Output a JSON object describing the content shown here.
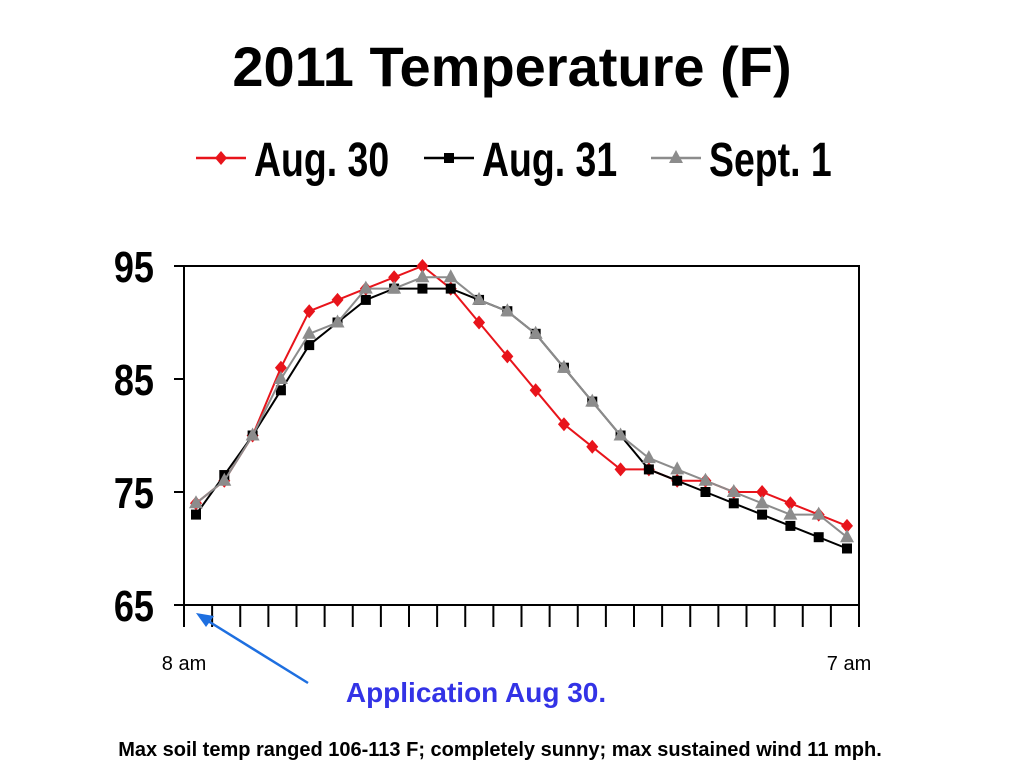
{
  "chart_data": {
    "type": "line",
    "title": "2011 Temperature (F)",
    "xlabel": "",
    "ylabel": "",
    "ylim": [
      65,
      95
    ],
    "yticks": [
      65,
      75,
      85,
      95
    ],
    "x_start_label": "8 am",
    "x_end_label": "7 am",
    "legend": "top",
    "grid": false,
    "series": [
      {
        "name": "Aug. 30",
        "color": "#e8141b",
        "marker": "diamond",
        "values": [
          74,
          76,
          80,
          86,
          91,
          92,
          93,
          94,
          95,
          93,
          90,
          87,
          84,
          81,
          79,
          77,
          77,
          76,
          76,
          75,
          75,
          74,
          73,
          72
        ]
      },
      {
        "name": "Aug. 31",
        "color": "#000000",
        "marker": "square",
        "values": [
          73,
          76.5,
          80,
          84,
          88,
          90,
          92,
          93,
          93,
          93,
          92,
          91,
          89,
          86,
          83,
          80,
          77,
          76,
          75,
          74,
          73,
          72,
          71,
          70
        ]
      },
      {
        "name": "Sept. 1",
        "color": "#8c8c8c",
        "marker": "triangle",
        "values": [
          74,
          76,
          80,
          85,
          89,
          90,
          93,
          93,
          94,
          94,
          92,
          91,
          89,
          86,
          83,
          80,
          78,
          77,
          76,
          75,
          74,
          73,
          73,
          71
        ]
      }
    ]
  },
  "annotation": {
    "text": "Application Aug 30.",
    "color": "#3333e6",
    "arrow_color": "#1e6fe0"
  },
  "footnote": "Max soil temp ranged 106-113 F; completely sunny; max sustained wind 11 mph."
}
